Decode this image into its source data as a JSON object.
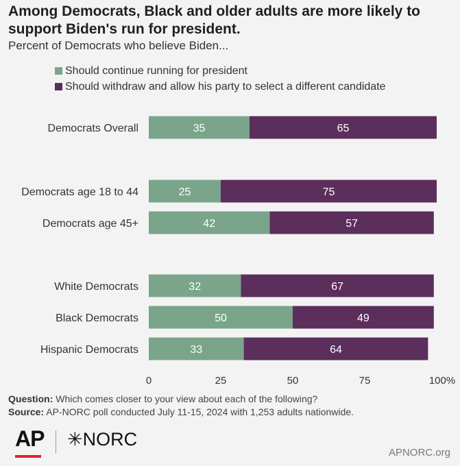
{
  "chart_data": {
    "type": "bar",
    "orientation": "horizontal",
    "stacked": true,
    "title": "Among Democrats, Black and older adults are more likely to support Biden's run for president.",
    "subtitle": "Percent of Democrats who believe Biden...",
    "categories": [
      "Democrats Overall",
      "Democrats age 18 to 44",
      "Democrats age 45+",
      "White Democrats",
      "Black Democrats",
      "Hispanic Democrats"
    ],
    "series": [
      {
        "name": "Should continue running for president",
        "color": "#7aa58b",
        "values": [
          35,
          25,
          42,
          32,
          50,
          33
        ]
      },
      {
        "name": "Should withdraw and allow his party to select a different candidate",
        "color": "#5b2e5c",
        "values": [
          65,
          75,
          57,
          67,
          49,
          64
        ]
      }
    ],
    "xlim": [
      0,
      100
    ],
    "xticks": [
      "0",
      "25",
      "50",
      "75",
      "100%"
    ],
    "xlabel": "",
    "ylabel": "",
    "grid": false,
    "legend": "top-left"
  },
  "footer": {
    "question_label": "Question:",
    "question_text": "Which comes closer to your view about each of the following?",
    "source_label": "Source:",
    "source_text": "AP-NORC poll conducted July 11-15, 2024 with 1,253 adults nationwide."
  },
  "logos": {
    "ap": "AP",
    "norc": "✳NORC",
    "site": "APNORC.org",
    "ap_bar_color": "#e0242c"
  }
}
